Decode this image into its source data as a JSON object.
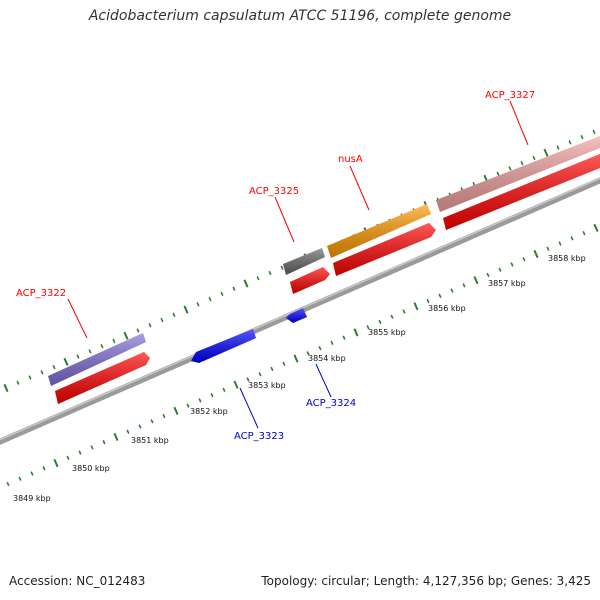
{
  "title": "Acidobacterium capsulatum ATCC 51196, complete genome",
  "footer": {
    "accession": "Accession: NC_012483",
    "topology": "Topology: circular; Length: 4,127,356 bp; Genes: 3,425"
  },
  "colors": {
    "forward_label": "#ff0000",
    "reverse_label": "#0000cc",
    "tick": "#2e7d32",
    "backbone": "#808080"
  },
  "forward_genes": [
    {
      "label": "ACP_3322",
      "color": "#7f6dd6",
      "strand_color": "#ff0000"
    },
    {
      "label": "ACP_3325",
      "color": "#666666",
      "strand_color": "#ff0000"
    },
    {
      "label": "nusA",
      "color": "#ff9900",
      "strand_color": "#ff0000"
    },
    {
      "label": "ACP_3327",
      "color": "#f0a0a0",
      "strand_color": "#ff0000"
    }
  ],
  "reverse_genes": [
    {
      "label": "ACP_3323",
      "color": "#0000ff"
    },
    {
      "label": "ACP_3324",
      "color": "#0000ff"
    }
  ],
  "scale_labels": [
    "3849 kbp",
    "3850 kbp",
    "3851 kbp",
    "3852 kbp",
    "3853 kbp",
    "3854 kbp",
    "3855 kbp",
    "3856 kbp",
    "3857 kbp",
    "3858 kbp"
  ]
}
